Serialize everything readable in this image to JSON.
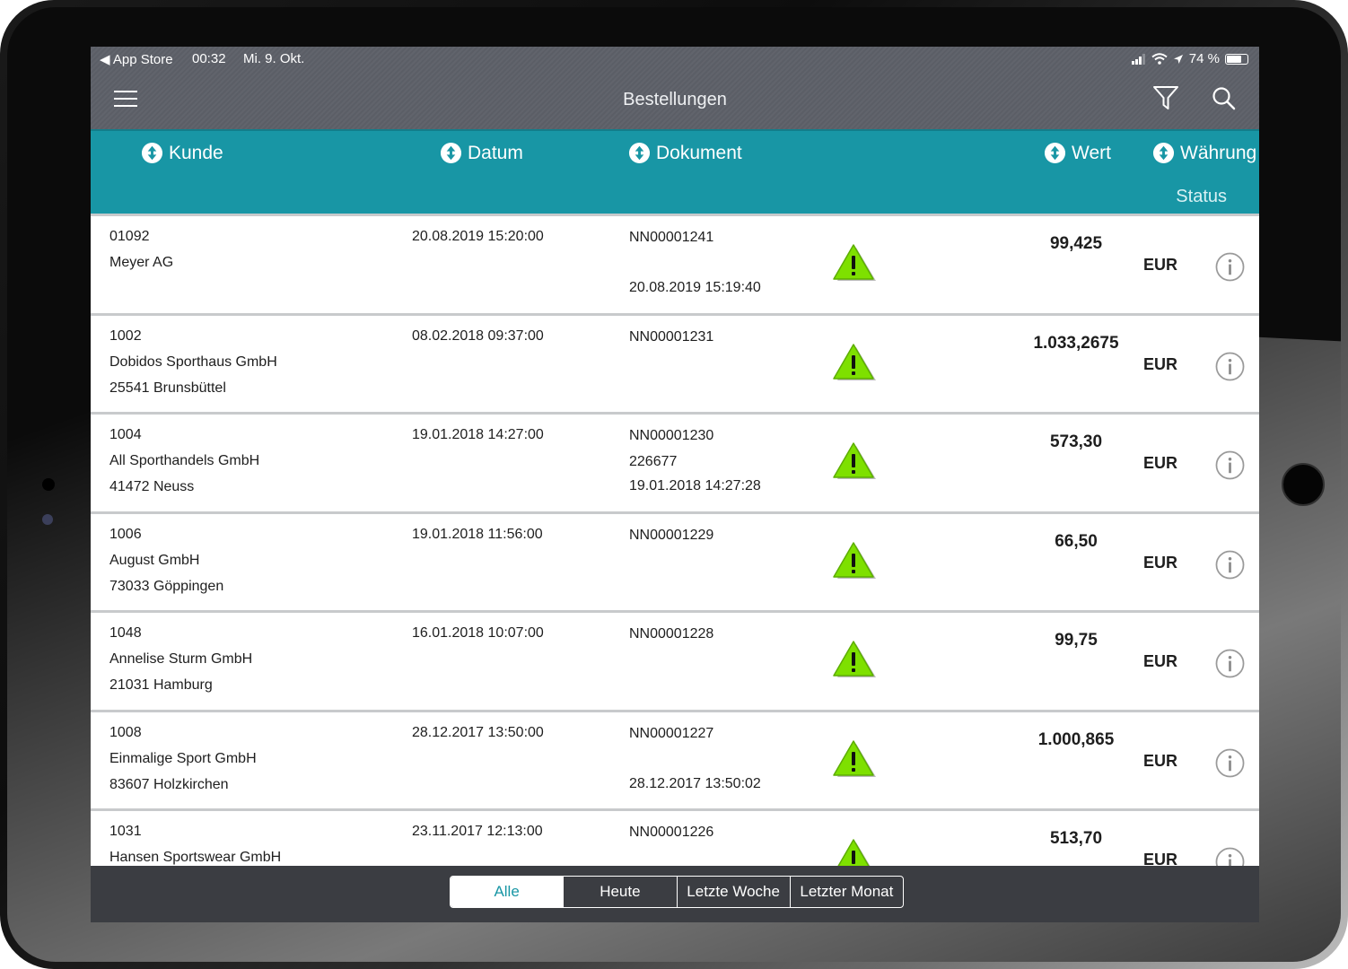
{
  "status_bar": {
    "back": "◀ App Store",
    "time": "00:32",
    "date": "Mi. 9. Okt.",
    "battery": "74 %",
    "battery_level": 0.74
  },
  "nav": {
    "title": "Bestellungen",
    "menu_icon": "hamburger-menu-icon",
    "filter_icon": "filter-funnel-icon",
    "search_icon": "search-magnifier-icon"
  },
  "columns": {
    "kunde": "Kunde",
    "datum": "Datum",
    "dokument": "Dokument",
    "wert": "Wert",
    "waehrung": "Währung",
    "status": "Status"
  },
  "colors": {
    "header": "#1896a5",
    "warning": "#7ee000",
    "topbar": "#5e6168",
    "bottombar": "#3b3d42"
  },
  "orders": [
    {
      "kunde_nr": "01092",
      "name": "Meyer AG",
      "ort": "",
      "datum": "20.08.2019 15:20:00",
      "dokument": "NN00001241",
      "extra": "",
      "doc_datum": "20.08.2019 15:19:40",
      "wert": "99,425",
      "waehrung": "EUR",
      "status_icon": "warning-triangle-icon"
    },
    {
      "kunde_nr": "1002",
      "name": "Dobidos Sporthaus GmbH",
      "ort": "25541 Brunsbüttel",
      "datum": "08.02.2018 09:37:00",
      "dokument": "NN00001231",
      "extra": "",
      "doc_datum": "",
      "wert": "1.033,2675",
      "waehrung": "EUR",
      "status_icon": "warning-triangle-icon"
    },
    {
      "kunde_nr": "1004",
      "name": "All Sporthandels GmbH",
      "ort": "41472 Neuss",
      "datum": "19.01.2018 14:27:00",
      "dokument": "NN00001230",
      "extra": "226677",
      "doc_datum": "19.01.2018 14:27:28",
      "wert": "573,30",
      "waehrung": "EUR",
      "status_icon": "warning-triangle-icon"
    },
    {
      "kunde_nr": "1006",
      "name": "August GmbH",
      "ort": "73033 Göppingen",
      "datum": "19.01.2018 11:56:00",
      "dokument": "NN00001229",
      "extra": "",
      "doc_datum": "",
      "wert": "66,50",
      "waehrung": "EUR",
      "status_icon": "warning-triangle-icon"
    },
    {
      "kunde_nr": "1048",
      "name": "Annelise Sturm GmbH",
      "ort": "21031 Hamburg",
      "datum": "16.01.2018 10:07:00",
      "dokument": "NN00001228",
      "extra": "",
      "doc_datum": "",
      "wert": "99,75",
      "waehrung": "EUR",
      "status_icon": "warning-triangle-icon"
    },
    {
      "kunde_nr": "1008",
      "name": "Einmalige Sport GmbH",
      "ort": "83607 Holzkirchen",
      "datum": "28.12.2017 13:50:00",
      "dokument": "NN00001227",
      "extra": "",
      "doc_datum": "28.12.2017 13:50:02",
      "wert": "1.000,865",
      "waehrung": "EUR",
      "status_icon": "warning-triangle-icon"
    },
    {
      "kunde_nr": "1031",
      "name": "Hansen Sportswear GmbH",
      "ort": "",
      "datum": "23.11.2017 12:13:00",
      "dokument": "NN00001226",
      "extra": "",
      "doc_datum": "",
      "wert": "513,70",
      "waehrung": "EUR",
      "status_icon": "warning-triangle-icon"
    }
  ],
  "filter_tabs": [
    {
      "label": "Alle",
      "active": true
    },
    {
      "label": "Heute",
      "active": false
    },
    {
      "label": "Letzte Woche",
      "active": false
    },
    {
      "label": "Letzter Monat",
      "active": false
    }
  ]
}
